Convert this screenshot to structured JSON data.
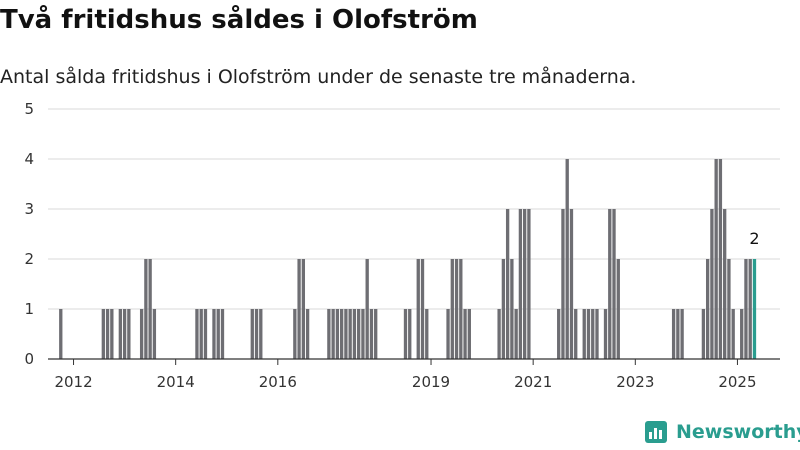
{
  "header": {
    "title": "Två fritidshus såldes i Olofström",
    "subtitle": "Antal sålda fritidshus i Olofström under de senaste tre månaderna."
  },
  "brand": {
    "name": "Newsworthy",
    "color": "#2a9d8f"
  },
  "chart_data": {
    "type": "bar",
    "title": "Två fritidshus såldes i Olofström",
    "subtitle": "Antal sålda fritidshus i Olofström under de senaste tre månaderna.",
    "xlabel": "",
    "ylabel": "",
    "ylim": [
      0,
      5
    ],
    "yticks": [
      0,
      1,
      2,
      3,
      4,
      5
    ],
    "xlim": [
      "2011-07",
      "2025-11"
    ],
    "xticks": [
      {
        "date": "2012-01",
        "label": "2012"
      },
      {
        "date": "2014-01",
        "label": "2014"
      },
      {
        "date": "2016-01",
        "label": "2016"
      },
      {
        "date": "2019-01",
        "label": "2019"
      },
      {
        "date": "2021-01",
        "label": "2021"
      },
      {
        "date": "2023-01",
        "label": "2023"
      },
      {
        "date": "2025-01",
        "label": "2025"
      }
    ],
    "grid": true,
    "bar_color": "#6e6e73",
    "highlight_color": "#2a9d8f",
    "highlight_label": "2",
    "points": [
      {
        "x": "2011-10",
        "y": 1
      },
      {
        "x": "2012-08",
        "y": 1
      },
      {
        "x": "2012-09",
        "y": 1
      },
      {
        "x": "2012-10",
        "y": 1
      },
      {
        "x": "2012-12",
        "y": 1
      },
      {
        "x": "2013-01",
        "y": 1
      },
      {
        "x": "2013-02",
        "y": 1
      },
      {
        "x": "2013-05",
        "y": 1
      },
      {
        "x": "2013-06",
        "y": 2
      },
      {
        "x": "2013-07",
        "y": 2
      },
      {
        "x": "2013-08",
        "y": 1
      },
      {
        "x": "2014-06",
        "y": 1
      },
      {
        "x": "2014-07",
        "y": 1
      },
      {
        "x": "2014-08",
        "y": 1
      },
      {
        "x": "2014-10",
        "y": 1
      },
      {
        "x": "2014-11",
        "y": 1
      },
      {
        "x": "2014-12",
        "y": 1
      },
      {
        "x": "2015-07",
        "y": 1
      },
      {
        "x": "2015-08",
        "y": 1
      },
      {
        "x": "2015-09",
        "y": 1
      },
      {
        "x": "2016-05",
        "y": 1
      },
      {
        "x": "2016-06",
        "y": 2
      },
      {
        "x": "2016-07",
        "y": 2
      },
      {
        "x": "2016-08",
        "y": 1
      },
      {
        "x": "2017-01",
        "y": 1
      },
      {
        "x": "2017-02",
        "y": 1
      },
      {
        "x": "2017-03",
        "y": 1
      },
      {
        "x": "2017-04",
        "y": 1
      },
      {
        "x": "2017-05",
        "y": 1
      },
      {
        "x": "2017-06",
        "y": 1
      },
      {
        "x": "2017-07",
        "y": 1
      },
      {
        "x": "2017-08",
        "y": 1
      },
      {
        "x": "2017-09",
        "y": 1
      },
      {
        "x": "2017-10",
        "y": 2
      },
      {
        "x": "2017-11",
        "y": 1
      },
      {
        "x": "2017-12",
        "y": 1
      },
      {
        "x": "2018-07",
        "y": 1
      },
      {
        "x": "2018-08",
        "y": 1
      },
      {
        "x": "2018-10",
        "y": 2
      },
      {
        "x": "2018-11",
        "y": 2
      },
      {
        "x": "2018-12",
        "y": 1
      },
      {
        "x": "2019-05",
        "y": 1
      },
      {
        "x": "2019-06",
        "y": 2
      },
      {
        "x": "2019-07",
        "y": 2
      },
      {
        "x": "2019-08",
        "y": 2
      },
      {
        "x": "2019-09",
        "y": 1
      },
      {
        "x": "2019-10",
        "y": 1
      },
      {
        "x": "2020-05",
        "y": 1
      },
      {
        "x": "2020-06",
        "y": 2
      },
      {
        "x": "2020-07",
        "y": 3
      },
      {
        "x": "2020-08",
        "y": 2
      },
      {
        "x": "2020-09",
        "y": 1
      },
      {
        "x": "2020-10",
        "y": 3
      },
      {
        "x": "2020-11",
        "y": 3
      },
      {
        "x": "2020-12",
        "y": 3
      },
      {
        "x": "2021-07",
        "y": 1
      },
      {
        "x": "2021-08",
        "y": 3
      },
      {
        "x": "2021-09",
        "y": 4
      },
      {
        "x": "2021-10",
        "y": 3
      },
      {
        "x": "2021-11",
        "y": 1
      },
      {
        "x": "2022-01",
        "y": 1
      },
      {
        "x": "2022-02",
        "y": 1
      },
      {
        "x": "2022-03",
        "y": 1
      },
      {
        "x": "2022-04",
        "y": 1
      },
      {
        "x": "2022-06",
        "y": 1
      },
      {
        "x": "2022-07",
        "y": 3
      },
      {
        "x": "2022-08",
        "y": 3
      },
      {
        "x": "2022-09",
        "y": 2
      },
      {
        "x": "2023-10",
        "y": 1
      },
      {
        "x": "2023-11",
        "y": 1
      },
      {
        "x": "2023-12",
        "y": 1
      },
      {
        "x": "2024-05",
        "y": 1
      },
      {
        "x": "2024-06",
        "y": 2
      },
      {
        "x": "2024-07",
        "y": 3
      },
      {
        "x": "2024-08",
        "y": 4
      },
      {
        "x": "2024-09",
        "y": 4
      },
      {
        "x": "2024-10",
        "y": 3
      },
      {
        "x": "2024-11",
        "y": 2
      },
      {
        "x": "2024-12",
        "y": 1
      },
      {
        "x": "2025-02",
        "y": 1
      },
      {
        "x": "2025-03",
        "y": 2
      },
      {
        "x": "2025-04",
        "y": 2
      },
      {
        "x": "2025-05",
        "y": 2,
        "highlight": true
      }
    ]
  }
}
